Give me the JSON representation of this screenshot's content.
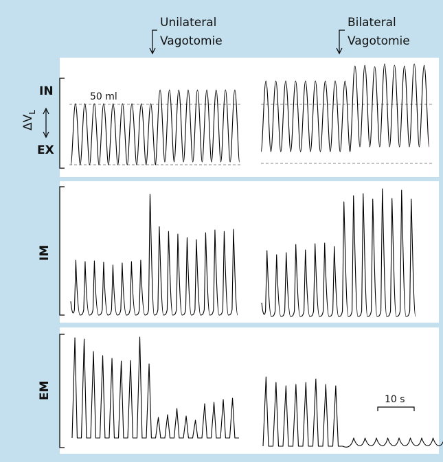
{
  "conditions": {
    "unilateral": [
      "Unilateral",
      "Vagotomie"
    ],
    "bilateral": [
      "Bilateral",
      "Vagotomie"
    ]
  },
  "rows": {
    "volume": {
      "label_delta": "ΔV",
      "label_sub": "L",
      "label_in": "IN",
      "label_ex": "EX",
      "scale_label": "50 ml"
    },
    "im": {
      "label": "IM"
    },
    "em": {
      "label": "EM"
    }
  },
  "time_scale_label": "10 s",
  "colors": {
    "frame": "#c4e0ee",
    "panel": "#ffffff",
    "trace": "#000000",
    "reference": "#8a8a8a"
  }
}
